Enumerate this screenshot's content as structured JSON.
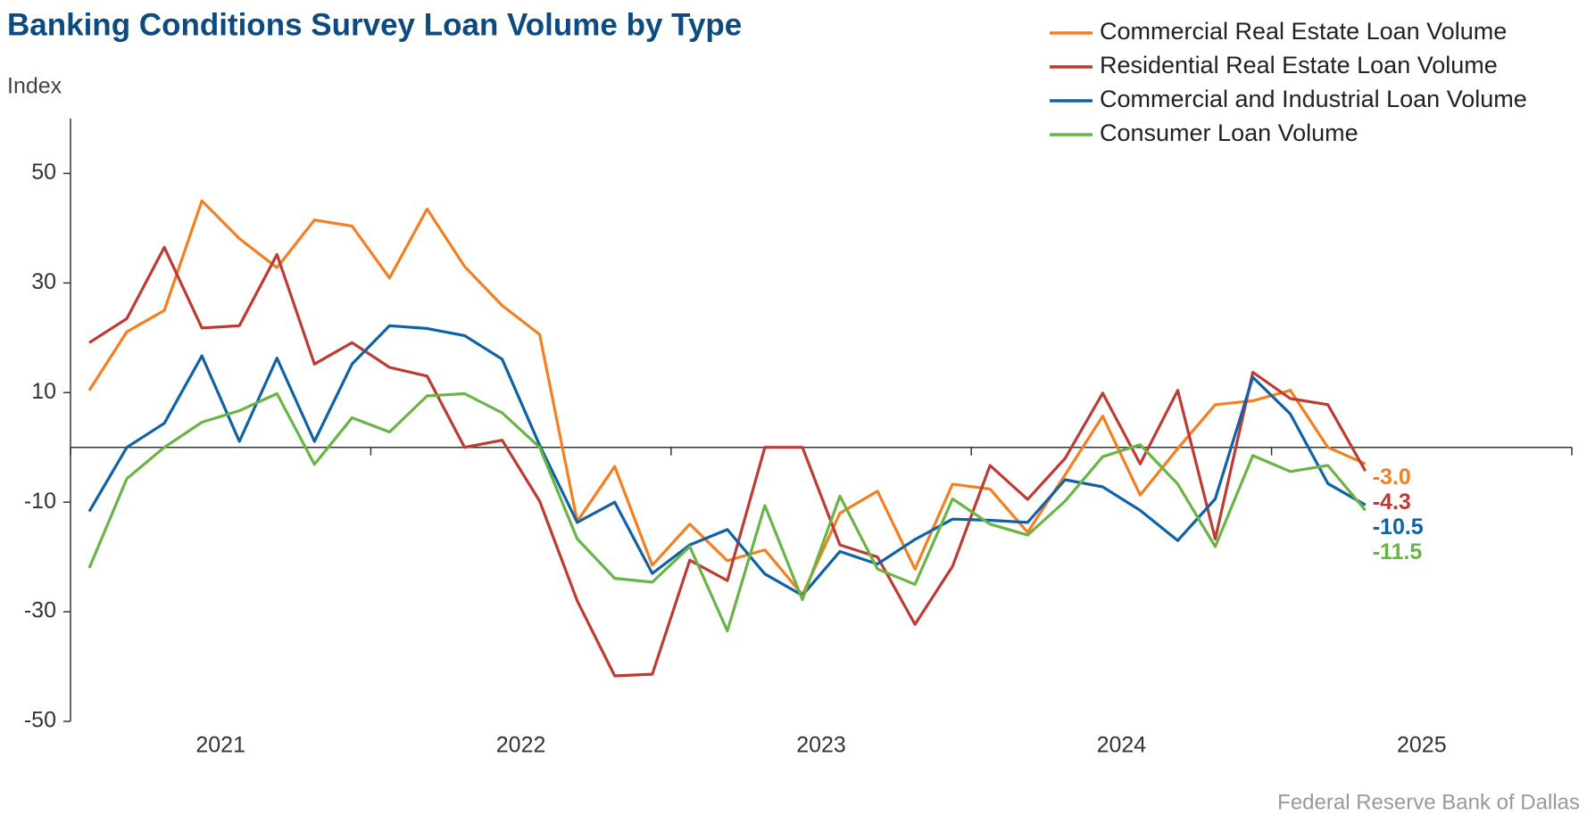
{
  "chart_data": {
    "type": "line",
    "title": "Banking Conditions Survey Loan Volume by Type",
    "y_label": "Index",
    "source": "Federal Reserve Bank of Dallas",
    "x": [
      2021.0625,
      2021.1875,
      2021.3125,
      2021.4375,
      2021.5625,
      2021.6875,
      2021.8125,
      2021.9375,
      2022.0625,
      2022.1875,
      2022.3125,
      2022.4375,
      2022.5625,
      2022.6875,
      2022.8125,
      2022.9375,
      2023.0625,
      2023.1875,
      2023.3125,
      2023.4375,
      2023.5625,
      2023.6875,
      2023.8125,
      2023.9375,
      2024.0625,
      2024.1875,
      2024.3125,
      2024.4375,
      2024.5625,
      2024.6875,
      2024.8125,
      2024.9375,
      2025.0625,
      2025.1875,
      2025.3125
    ],
    "xlim": [
      2021,
      2026
    ],
    "xticks": [
      2021,
      2022,
      2023,
      2024,
      2025,
      2026
    ],
    "xlabels": [
      {
        "value": 2021.5,
        "label": "2021"
      },
      {
        "value": 2022.5,
        "label": "2022"
      },
      {
        "value": 2023.5,
        "label": "2023"
      },
      {
        "value": 2024.5,
        "label": "2024"
      },
      {
        "value": 2025.5,
        "label": "2025"
      }
    ],
    "ylim": [
      -50,
      60
    ],
    "yticks": [
      50,
      30,
      10,
      -10,
      -30,
      -50
    ],
    "series": [
      {
        "name": "Commercial Real Estate Loan Volume",
        "color": "#f47f20",
        "last_label": "-3.0",
        "values": [
          10.4,
          21.1,
          25,
          45,
          38.1,
          32.8,
          41.5,
          40.4,
          30.9,
          43.5,
          33,
          25.9,
          20.6,
          -13.5,
          -3.5,
          -21.5,
          -14,
          -20.7,
          -18.7,
          -26.9,
          -12,
          -8,
          -22.2,
          -6.7,
          -7.6,
          -15.5,
          -5,
          5.7,
          -8.7,
          -0.2,
          7.8,
          8.5,
          10.4,
          0,
          -3.0
        ]
      },
      {
        "name": "Residential Real Estate Loan Volume",
        "color": "#be3a34",
        "last_label": "-4.3",
        "values": [
          19.1,
          23.5,
          36.5,
          21.8,
          22.2,
          35.2,
          15.2,
          19.1,
          14.6,
          13,
          0,
          1.3,
          -9.8,
          -28,
          -41.7,
          -41.4,
          -20.6,
          -24.3,
          0,
          0,
          -17.8,
          -20,
          -32.3,
          -21.7,
          -3.3,
          -9.5,
          -2,
          9.9,
          -3,
          10.4,
          -16.7,
          13.7,
          8.9,
          7.8,
          -4.3
        ]
      },
      {
        "name": "Commercial and Industrial Loan Volume",
        "color": "#0f62a6",
        "last_label": "-10.5",
        "values": [
          -11.7,
          0,
          4.4,
          16.7,
          1.1,
          16.3,
          1.1,
          15.2,
          22.2,
          21.7,
          20.4,
          16.1,
          0.4,
          -13.7,
          -10,
          -23,
          -17.8,
          -15,
          -23.1,
          -27,
          -19,
          -21.3,
          -16.8,
          -13.1,
          -13.3,
          -13.7,
          -5.9,
          -7.2,
          -11.5,
          -17,
          -9.4,
          12.8,
          6.1,
          -6.6,
          -10.5
        ]
      },
      {
        "name": "Consumer Loan Volume",
        "color": "#6ab445",
        "last_label": "-11.5",
        "values": [
          -22,
          -5.7,
          0,
          4.6,
          6.7,
          9.8,
          -3.1,
          5.4,
          2.8,
          9.4,
          9.8,
          6.3,
          0,
          -16.7,
          -23.9,
          -24.6,
          -18.1,
          -33.5,
          -10.6,
          -27.8,
          -8.9,
          -22.2,
          -25,
          -9.4,
          -14,
          -16,
          -9.8,
          -1.7,
          0.5,
          -6.7,
          -18.1,
          -1.5,
          -4.4,
          -3.3,
          -11.5
        ]
      }
    ]
  }
}
